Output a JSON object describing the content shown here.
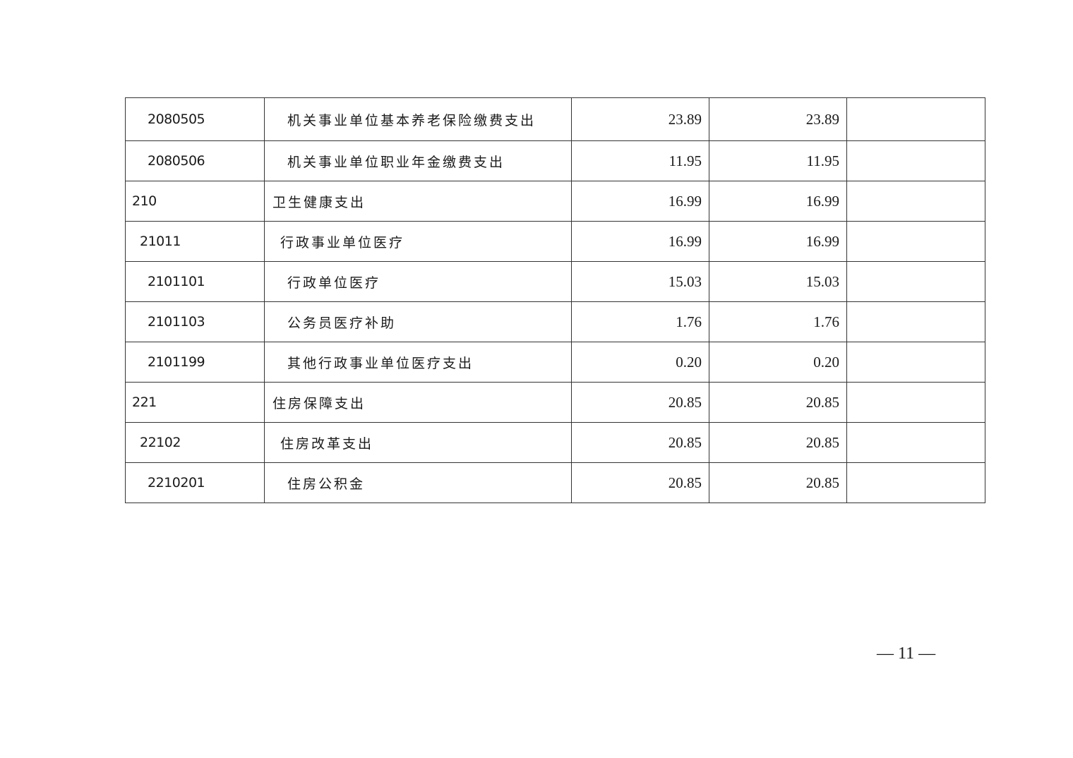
{
  "table": {
    "rows": [
      {
        "code": "2080505",
        "name": "机关事业单位基本养老保险缴费支出",
        "level": 2,
        "col3": "23.89",
        "col4": "23.89",
        "col5": ""
      },
      {
        "code": "2080506",
        "name": "机关事业单位职业年金缴费支出",
        "level": 2,
        "col3": "11.95",
        "col4": "11.95",
        "col5": ""
      },
      {
        "code": "210",
        "name": "卫生健康支出",
        "level": 0,
        "col3": "16.99",
        "col4": "16.99",
        "col5": ""
      },
      {
        "code": "21011",
        "name": "行政事业单位医疗",
        "level": 1,
        "col3": "16.99",
        "col4": "16.99",
        "col5": ""
      },
      {
        "code": "2101101",
        "name": "行政单位医疗",
        "level": 2,
        "col3": "15.03",
        "col4": "15.03",
        "col5": ""
      },
      {
        "code": "2101103",
        "name": "公务员医疗补助",
        "level": 2,
        "col3": "1.76",
        "col4": "1.76",
        "col5": ""
      },
      {
        "code": "2101199",
        "name": "其他行政事业单位医疗支出",
        "level": 2,
        "col3": "0.20",
        "col4": "0.20",
        "col5": ""
      },
      {
        "code": "221",
        "name": "住房保障支出",
        "level": 0,
        "col3": "20.85",
        "col4": "20.85",
        "col5": ""
      },
      {
        "code": "22102",
        "name": "住房改革支出",
        "level": 1,
        "col3": "20.85",
        "col4": "20.85",
        "col5": ""
      },
      {
        "code": "2210201",
        "name": "住房公积金",
        "level": 2,
        "col3": "20.85",
        "col4": "20.85",
        "col5": ""
      }
    ]
  },
  "footer": {
    "page_number": "— 11 —"
  }
}
